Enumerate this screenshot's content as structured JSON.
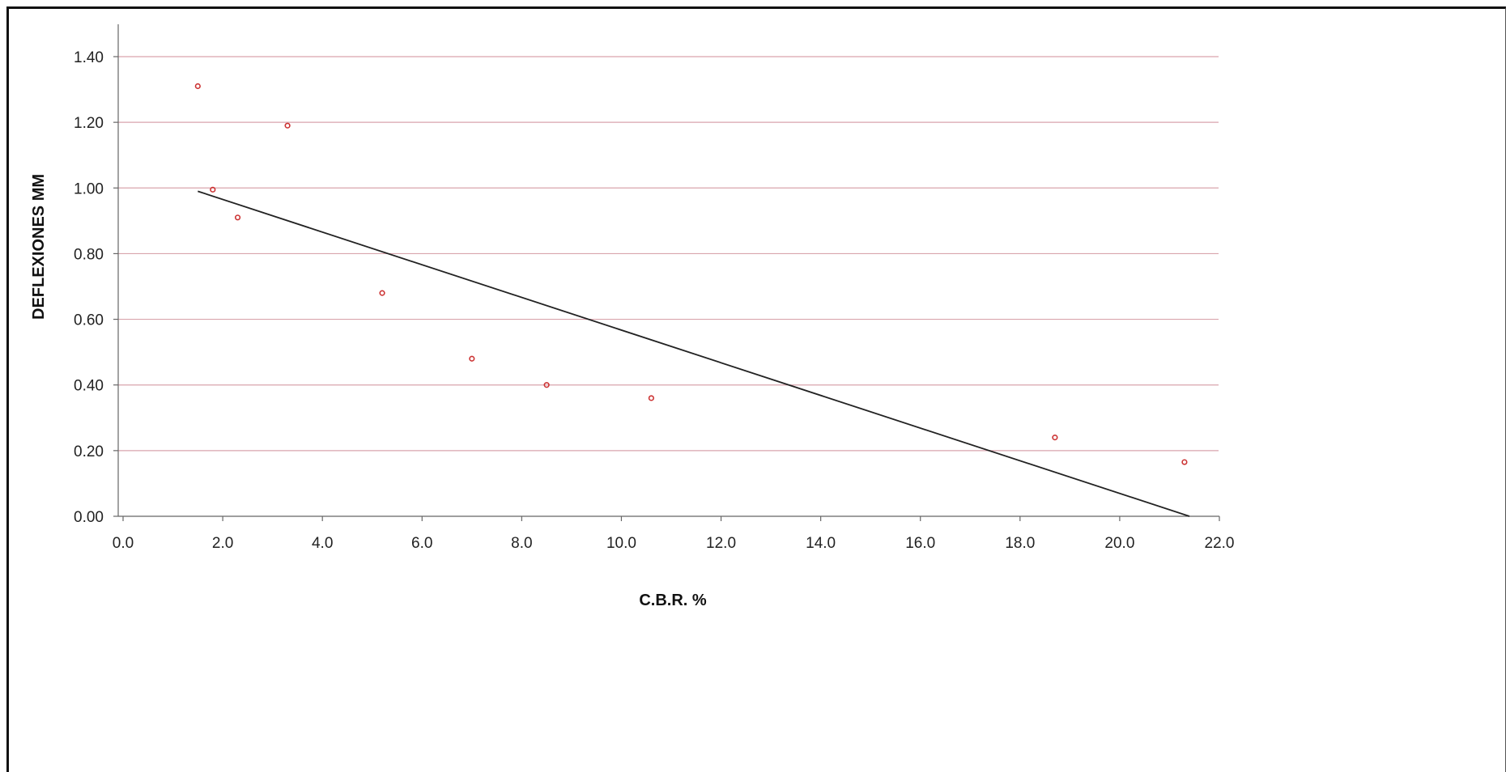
{
  "chart_data": {
    "type": "scatter",
    "title": "",
    "xlabel": "C.B.R. %",
    "ylabel": "DEFLEXIONES  MM",
    "xlim": [
      0.0,
      22.0
    ],
    "ylim": [
      0.0,
      1.4
    ],
    "x_ticks": [
      "0.0",
      "2.0",
      "4.0",
      "6.0",
      "8.0",
      "10.0",
      "12.0",
      "14.0",
      "16.0",
      "18.0",
      "20.0",
      "22.0"
    ],
    "y_ticks": [
      "0.00",
      "0.20",
      "0.40",
      "0.60",
      "0.80",
      "1.00",
      "1.20",
      "1.40"
    ],
    "grid": true,
    "series": [
      {
        "kind": "points",
        "color": "#cc3333",
        "points": [
          {
            "x": 1.5,
            "y": 1.31
          },
          {
            "x": 1.8,
            "y": 0.995
          },
          {
            "x": 2.3,
            "y": 0.91
          },
          {
            "x": 3.3,
            "y": 1.19
          },
          {
            "x": 5.2,
            "y": 0.68
          },
          {
            "x": 7.0,
            "y": 0.48
          },
          {
            "x": 8.5,
            "y": 0.4
          },
          {
            "x": 10.6,
            "y": 0.36
          },
          {
            "x": 18.7,
            "y": 0.24
          },
          {
            "x": 21.3,
            "y": 0.165
          }
        ]
      },
      {
        "kind": "trendline",
        "color": "#222222",
        "points": [
          {
            "x": 1.5,
            "y": 0.99
          },
          {
            "x": 21.4,
            "y": 0.0
          }
        ]
      }
    ]
  }
}
